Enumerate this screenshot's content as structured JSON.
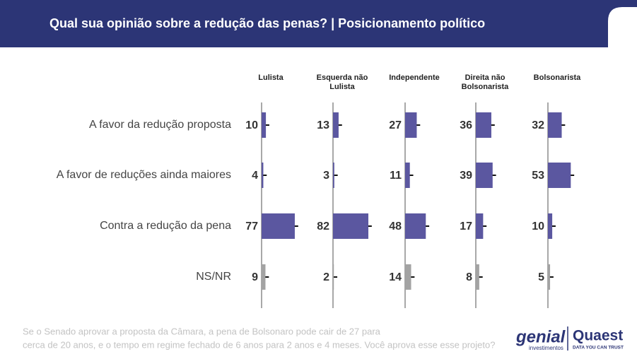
{
  "chart_data": {
    "type": "bar",
    "title": "Qual sua opinião sobre a redução das penas? | Posicionamento político",
    "categories": [
      "A favor da redução proposta",
      "A favor de reduções ainda maiores",
      "Contra a redução da pena",
      "NS/NR"
    ],
    "category_colors": [
      "#5b57a0",
      "#5b57a0",
      "#5b57a0",
      "#a3a3a3"
    ],
    "xlim": [
      0,
      100
    ],
    "error": 3,
    "series": [
      {
        "name": "Lulista",
        "values": [
          10,
          4,
          77,
          9
        ]
      },
      {
        "name": "Esquerda não Lulista",
        "values": [
          13,
          3,
          82,
          2
        ]
      },
      {
        "name": "Independente",
        "values": [
          27,
          11,
          48,
          14
        ]
      },
      {
        "name": "Direita não Bolsonarista",
        "values": [
          36,
          39,
          17,
          8
        ]
      },
      {
        "name": "Bolsonarista",
        "values": [
          32,
          53,
          10,
          5
        ]
      }
    ],
    "footnote": [
      "Se o Senado aprovar a proposta da Câmara, a pena de Bolsonaro pode cair de 27 para",
      "cerca de 20 anos, e o tempo em regime fechado de 6 anos para 2 anos e 4 meses. Você aprova esse esse projeto?"
    ],
    "logos": {
      "genial": "genial",
      "genial_sub": "investimentos",
      "quaest": "Quaest",
      "quaest_sub": "DATA YOU CAN TRUST"
    }
  }
}
